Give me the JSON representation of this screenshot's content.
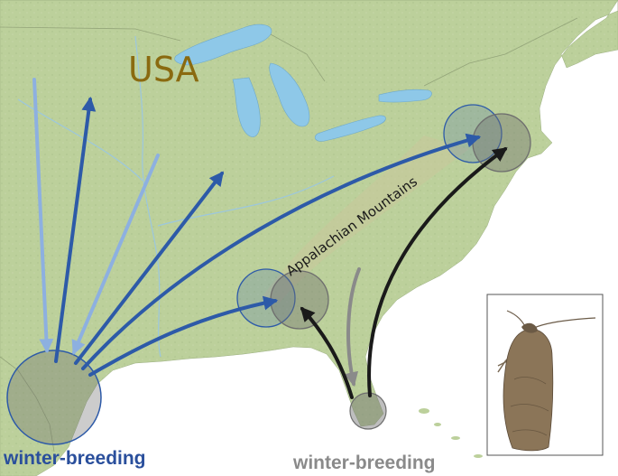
{
  "labels": {
    "country": "USA",
    "mountains": "Appalachian Mountains",
    "west_source": "winter-breeding",
    "east_source": "winter-breeding"
  },
  "colors": {
    "land": "#bcd09b",
    "land_highlands": "#c9c69a",
    "water": "#8ec8e8",
    "country_label": "#8a6a10",
    "west_label": "#2a4f9c",
    "east_label": "#8a8a8a",
    "arrow_dark_blue": "#2d5aa8",
    "arrow_light_blue": "#8db0e0",
    "arrow_black": "#1a1a1a",
    "arrow_gray": "#8a8a8a",
    "zone_blue": "#2d5aa8",
    "zone_gray": "#6e6e6e"
  },
  "icons": {
    "inset_photo": "moth-icon"
  }
}
